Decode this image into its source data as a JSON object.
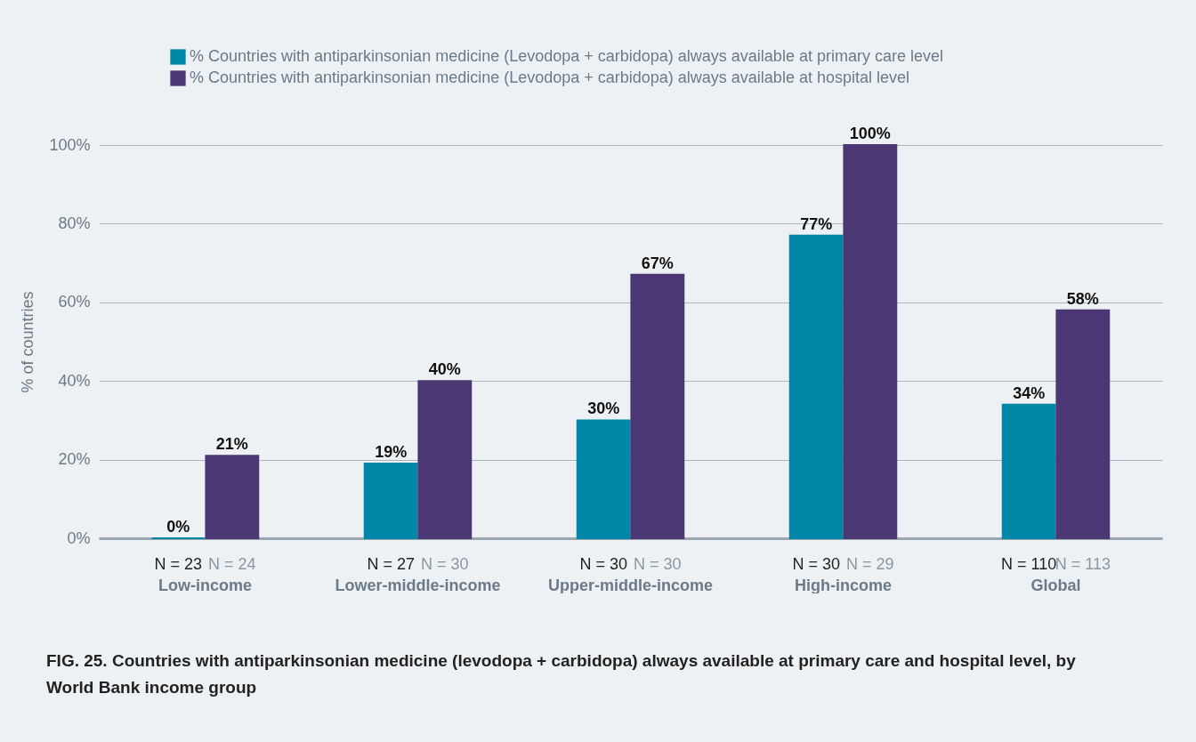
{
  "chart_data": {
    "type": "bar",
    "title": "FIG. 25. Countries with antiparkinsonian medicine (levodopa + carbidopa) always available at primary care and hospital level, by World Bank income group",
    "ylabel": "% of countries",
    "categories": [
      "Low-income",
      "Lower-middle-income",
      "Upper-middle-income",
      "High-income",
      "Global"
    ],
    "series": [
      {
        "name": "% Countries with antiparkinsonian medicine (Levodopa + carbidopa) always available at primary care level",
        "color": "#0087a8",
        "values": [
          0,
          19,
          30,
          77,
          34
        ],
        "value_labels": [
          "0%",
          "19%",
          "30%",
          "77%",
          "34%"
        ]
      },
      {
        "name": "% Countries with antiparkinsonian medicine (Levodopa + carbidopa) always available at hospital level",
        "color": "#4a3773",
        "values": [
          21,
          40,
          67,
          100,
          58
        ],
        "value_labels": [
          "21%",
          "40%",
          "67%",
          "100%",
          "58%"
        ]
      }
    ],
    "ylim": [
      0,
      100
    ],
    "yticks": [
      {
        "value": 0,
        "label": "0%"
      },
      {
        "value": 20,
        "label": "20%"
      },
      {
        "value": 40,
        "label": "40%"
      },
      {
        "value": 60,
        "label": "60%"
      },
      {
        "value": 80,
        "label": "80%"
      },
      {
        "value": 100,
        "label": "100%"
      }
    ],
    "grid": "y",
    "legend": "top left",
    "annotations": [
      "N = 23",
      "N = 24",
      "N = 27",
      "N = 30",
      "N = 30",
      "N = 30",
      "N = 30",
      "N = 29",
      "N = 110",
      "N = 113"
    ]
  }
}
